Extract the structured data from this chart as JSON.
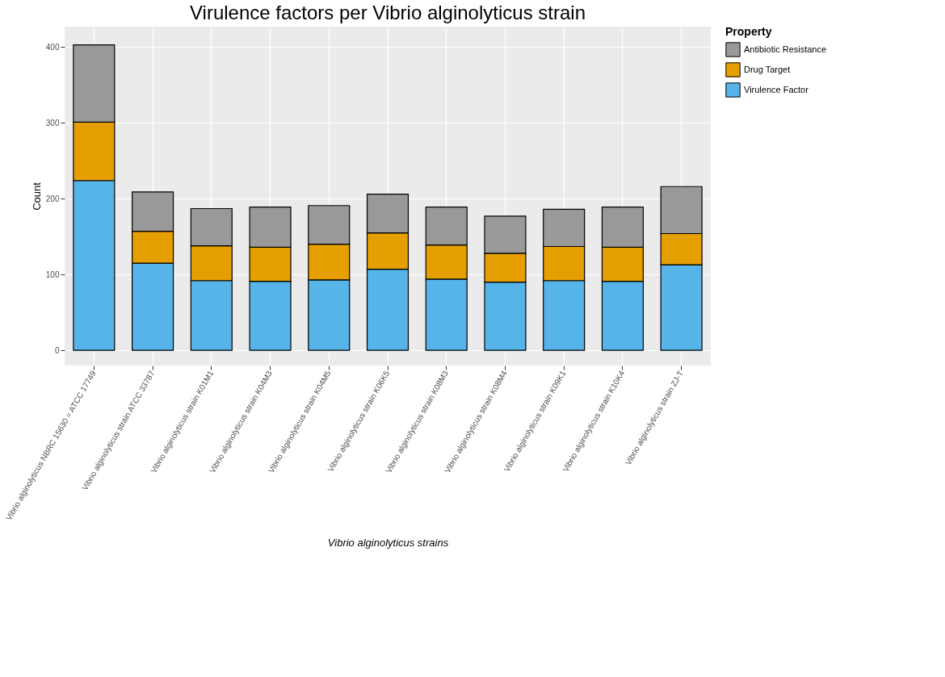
{
  "chart_data": {
    "type": "bar",
    "title": "Virulence factors per Vibrio alginolyticus strain",
    "xlabel": "Vibrio alginolyticus strains",
    "ylabel": "Count",
    "legend_title": "Property",
    "categories": [
      "Vibrio alginolyticus NBRC 15630 = ATCC 17749",
      "Vibrio alginolyticus strain ATCC 33787",
      "Vibrio alginolyticus strain K01M1",
      "Vibrio alginolyticus strain K04M3",
      "Vibrio alginolyticus strain K04M5",
      "Vibrio alginolyticus strain K06K5",
      "Vibrio alginolyticus strain K08M3",
      "Vibrio alginolyticus strain K08M4",
      "Vibrio alginolyticus strain K09K1",
      "Vibrio alginolyticus strain K10K4",
      "Vibrio alginolyticus strain ZJ-T"
    ],
    "stacked": true,
    "series": [
      {
        "name": "Virulence Factor",
        "color": "#56b4e9",
        "values": [
          224,
          115,
          92,
          91,
          93,
          107,
          94,
          90,
          92,
          91,
          113
        ]
      },
      {
        "name": "Drug Target",
        "color": "#e69f00",
        "values": [
          77,
          42,
          46,
          45,
          47,
          48,
          45,
          38,
          45,
          45,
          41
        ]
      },
      {
        "name": "Antibiotic Resistance",
        "color": "#999999",
        "values": [
          102,
          52,
          49,
          53,
          51,
          51,
          50,
          49,
          49,
          53,
          62
        ]
      }
    ],
    "ylim": [
      -20,
      427
    ],
    "yticks": [
      0,
      100,
      200,
      300,
      400
    ],
    "grid": true,
    "legend": "right"
  }
}
